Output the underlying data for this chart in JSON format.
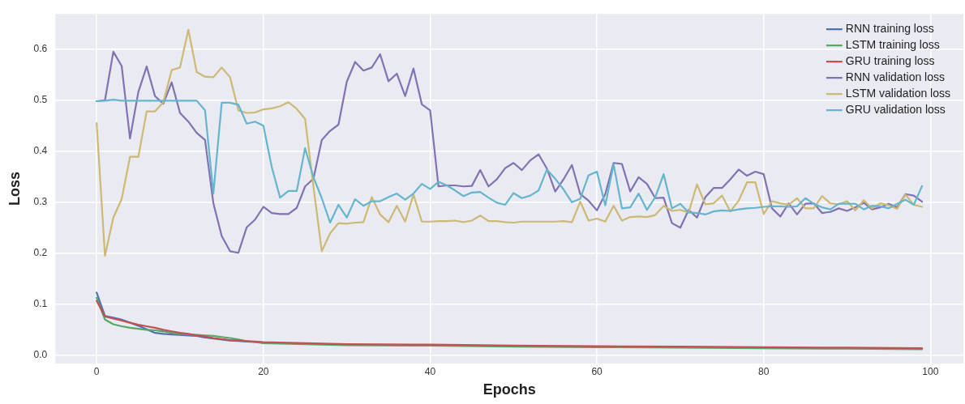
{
  "chart_data": {
    "type": "line",
    "xlabel": "Epochs",
    "ylabel": "Loss",
    "x": [
      0,
      1,
      2,
      3,
      4,
      5,
      6,
      7,
      8,
      9,
      10,
      11,
      12,
      13,
      14,
      15,
      16,
      17,
      18,
      19,
      20,
      21,
      22,
      23,
      24,
      25,
      26,
      27,
      28,
      29,
      30,
      31,
      32,
      33,
      34,
      35,
      36,
      37,
      38,
      39,
      40,
      41,
      42,
      43,
      44,
      45,
      46,
      47,
      48,
      49,
      50,
      51,
      52,
      53,
      54,
      55,
      56,
      57,
      58,
      59,
      60,
      61,
      62,
      63,
      64,
      65,
      66,
      67,
      68,
      69,
      70,
      71,
      72,
      73,
      74,
      75,
      76,
      77,
      78,
      79,
      80,
      81,
      82,
      83,
      84,
      85,
      86,
      87,
      88,
      89,
      90,
      91,
      92,
      93,
      94,
      95,
      96,
      97,
      98,
      99
    ],
    "series": [
      {
        "name": "RNN training loss",
        "color": "#4c72b0",
        "x": [
          0,
          1,
          2,
          3,
          4,
          5,
          6,
          7,
          8,
          9,
          10,
          11,
          12,
          13,
          14,
          15,
          16,
          17,
          18,
          19,
          20
        ],
        "values": [
          0.123,
          0.077,
          0.074,
          0.07,
          0.064,
          0.058,
          0.051,
          0.044,
          0.042,
          0.041,
          0.04,
          0.039,
          0.038,
          0.035,
          0.033,
          0.031,
          0.029,
          0.028,
          0.027,
          0.026,
          0.025
        ]
      },
      {
        "name": "LSTM training loss",
        "color": "#55a868",
        "x": [
          0,
          1,
          2,
          3,
          4,
          5,
          6,
          7,
          8,
          9,
          10,
          11,
          12,
          13,
          14,
          15,
          16,
          17,
          18,
          19,
          20,
          25,
          30,
          40,
          50,
          60,
          70,
          80,
          90,
          99
        ],
        "values": [
          0.113,
          0.07,
          0.061,
          0.057,
          0.054,
          0.052,
          0.05,
          0.049,
          0.047,
          0.044,
          0.042,
          0.041,
          0.04,
          0.039,
          0.038,
          0.036,
          0.034,
          0.031,
          0.028,
          0.026,
          0.024,
          0.022,
          0.02,
          0.019,
          0.017,
          0.016,
          0.015,
          0.014,
          0.013,
          0.012
        ]
      },
      {
        "name": "GRU training loss",
        "color": "#c44e52",
        "x": [
          0,
          1,
          2,
          3,
          4,
          5,
          6,
          7,
          8,
          9,
          10,
          11,
          12,
          13,
          14,
          15,
          16,
          17,
          18,
          19,
          20,
          25,
          30,
          40,
          50,
          60,
          70,
          80,
          90,
          99
        ],
        "values": [
          0.107,
          0.076,
          0.072,
          0.068,
          0.064,
          0.06,
          0.057,
          0.054,
          0.05,
          0.047,
          0.044,
          0.042,
          0.039,
          0.037,
          0.034,
          0.032,
          0.03,
          0.029,
          0.028,
          0.027,
          0.026,
          0.024,
          0.022,
          0.021,
          0.019,
          0.018,
          0.017,
          0.016,
          0.015,
          0.014
        ]
      },
      {
        "name": "RNN validation loss",
        "color": "#8172b2",
        "values": [
          0.498,
          0.5,
          0.595,
          0.567,
          0.425,
          0.516,
          0.566,
          0.508,
          0.493,
          0.535,
          0.475,
          0.458,
          0.436,
          0.422,
          0.298,
          0.234,
          0.204,
          0.201,
          0.251,
          0.266,
          0.291,
          0.279,
          0.277,
          0.277,
          0.289,
          0.331,
          0.346,
          0.422,
          0.44,
          0.452,
          0.536,
          0.575,
          0.558,
          0.564,
          0.59,
          0.537,
          0.552,
          0.508,
          0.562,
          0.492,
          0.48,
          0.331,
          0.333,
          0.333,
          0.331,
          0.332,
          0.363,
          0.331,
          0.345,
          0.367,
          0.377,
          0.363,
          0.382,
          0.394,
          0.366,
          0.321,
          0.345,
          0.373,
          0.316,
          0.303,
          0.284,
          0.316,
          0.377,
          0.375,
          0.321,
          0.349,
          0.336,
          0.308,
          0.309,
          0.259,
          0.25,
          0.285,
          0.27,
          0.31,
          0.328,
          0.328,
          0.345,
          0.364,
          0.352,
          0.36,
          0.355,
          0.288,
          0.272,
          0.298,
          0.276,
          0.297,
          0.298,
          0.279,
          0.281,
          0.288,
          0.283,
          0.29,
          0.299,
          0.286,
          0.29,
          0.297,
          0.29,
          0.316,
          0.313,
          0.301
        ]
      },
      {
        "name": "LSTM validation loss",
        "color": "#ccb974",
        "values": [
          0.455,
          0.195,
          0.27,
          0.306,
          0.389,
          0.389,
          0.478,
          0.478,
          0.496,
          0.559,
          0.564,
          0.638,
          0.555,
          0.546,
          0.545,
          0.564,
          0.545,
          0.48,
          0.475,
          0.476,
          0.482,
          0.484,
          0.488,
          0.496,
          0.483,
          0.463,
          0.331,
          0.204,
          0.239,
          0.259,
          0.258,
          0.26,
          0.261,
          0.31,
          0.276,
          0.261,
          0.293,
          0.262,
          0.315,
          0.262,
          0.262,
          0.263,
          0.263,
          0.264,
          0.261,
          0.264,
          0.274,
          0.263,
          0.263,
          0.261,
          0.26,
          0.262,
          0.262,
          0.262,
          0.262,
          0.262,
          0.263,
          0.261,
          0.301,
          0.264,
          0.268,
          0.262,
          0.293,
          0.264,
          0.271,
          0.272,
          0.271,
          0.275,
          0.293,
          0.283,
          0.285,
          0.28,
          0.335,
          0.296,
          0.298,
          0.313,
          0.282,
          0.303,
          0.339,
          0.339,
          0.277,
          0.302,
          0.298,
          0.295,
          0.308,
          0.288,
          0.288,
          0.312,
          0.298,
          0.296,
          0.302,
          0.284,
          0.304,
          0.288,
          0.298,
          0.294,
          0.287,
          0.315,
          0.295,
          0.291
        ]
      },
      {
        "name": "GRU validation loss",
        "color": "#64b5cd",
        "values": [
          0.498,
          0.499,
          0.501,
          0.499,
          0.499,
          0.499,
          0.499,
          0.499,
          0.499,
          0.499,
          0.499,
          0.499,
          0.499,
          0.48,
          0.317,
          0.495,
          0.495,
          0.491,
          0.454,
          0.458,
          0.45,
          0.369,
          0.309,
          0.322,
          0.322,
          0.406,
          0.349,
          0.308,
          0.26,
          0.295,
          0.27,
          0.306,
          0.293,
          0.302,
          0.302,
          0.31,
          0.317,
          0.305,
          0.317,
          0.336,
          0.326,
          0.34,
          0.333,
          0.323,
          0.312,
          0.319,
          0.32,
          0.309,
          0.299,
          0.295,
          0.318,
          0.308,
          0.313,
          0.323,
          0.364,
          0.346,
          0.325,
          0.3,
          0.307,
          0.353,
          0.36,
          0.294,
          0.374,
          0.288,
          0.29,
          0.317,
          0.285,
          0.31,
          0.355,
          0.288,
          0.297,
          0.28,
          0.279,
          0.276,
          0.282,
          0.284,
          0.283,
          0.286,
          0.288,
          0.289,
          0.291,
          0.292,
          0.292,
          0.291,
          0.292,
          0.308,
          0.297,
          0.29,
          0.286,
          0.297,
          0.297,
          0.297,
          0.286,
          0.293,
          0.292,
          0.288,
          0.297,
          0.305,
          0.295,
          0.332
        ]
      }
    ],
    "xlim": [
      -4.95,
      103.95
    ],
    "xticks": [
      0,
      20,
      40,
      60,
      80,
      100
    ],
    "ylim": [
      -0.016,
      0.669
    ],
    "yticks": [
      {
        "value": 0,
        "label": "0.0"
      },
      0.1,
      0.2,
      0.3,
      0.4,
      0.5,
      0.6
    ],
    "grid": true,
    "legend": "top right",
    "marker": "none",
    "line_style": "solid"
  }
}
